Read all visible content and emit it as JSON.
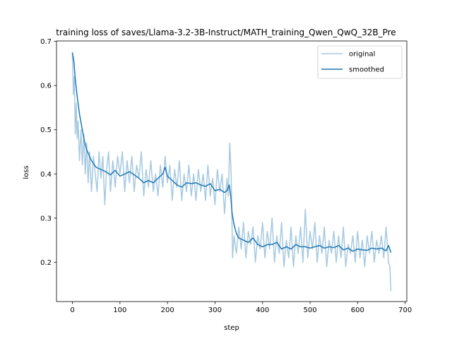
{
  "chart_data": {
    "type": "line",
    "title": "training loss of saves/Llama-3.2-3B-Instruct/MATH_training_Qwen_QwQ_32B_Pre",
    "xlabel": "step",
    "ylabel": "loss",
    "xlim": [
      -33.5,
      703.5
    ],
    "ylim": [
      0.111,
      0.701
    ],
    "xticks": [
      0,
      100,
      200,
      300,
      400,
      500,
      600,
      700
    ],
    "yticks": [
      0.2,
      0.3,
      0.4,
      0.5,
      0.6,
      0.7
    ],
    "grid": false,
    "legend_position": "top-right",
    "series": [
      {
        "name": "original",
        "color": "#1f77b4",
        "alpha": 0.4,
        "x": [
          0,
          2,
          4,
          6,
          8,
          10,
          12,
          15,
          18,
          21,
          24,
          27,
          30,
          33,
          36,
          40,
          44,
          48,
          52,
          56,
          60,
          64,
          68,
          72,
          76,
          80,
          85,
          90,
          95,
          100,
          105,
          110,
          115,
          120,
          125,
          130,
          135,
          140,
          145,
          150,
          155,
          160,
          165,
          170,
          175,
          180,
          185,
          190,
          195,
          200,
          205,
          210,
          215,
          220,
          225,
          230,
          235,
          240,
          245,
          250,
          255,
          260,
          265,
          270,
          275,
          280,
          285,
          290,
          295,
          300,
          305,
          310,
          315,
          320,
          325,
          328,
          331,
          334,
          337,
          340,
          345,
          350,
          355,
          360,
          365,
          370,
          375,
          380,
          385,
          390,
          395,
          400,
          405,
          410,
          415,
          420,
          425,
          430,
          435,
          440,
          445,
          450,
          455,
          460,
          465,
          470,
          475,
          480,
          485,
          490,
          495,
          500,
          505,
          510,
          515,
          520,
          525,
          530,
          535,
          540,
          545,
          550,
          555,
          560,
          565,
          570,
          575,
          580,
          585,
          590,
          595,
          600,
          605,
          610,
          615,
          620,
          625,
          630,
          635,
          640,
          645,
          650,
          655,
          660,
          665,
          668,
          670
        ],
        "y": [
          0.675,
          0.58,
          0.62,
          0.49,
          0.56,
          0.48,
          0.52,
          0.43,
          0.5,
          0.42,
          0.49,
          0.4,
          0.47,
          0.38,
          0.45,
          0.36,
          0.44,
          0.4,
          0.36,
          0.45,
          0.39,
          0.44,
          0.33,
          0.41,
          0.45,
          0.36,
          0.43,
          0.37,
          0.44,
          0.4,
          0.45,
          0.36,
          0.43,
          0.38,
          0.44,
          0.36,
          0.42,
          0.39,
          0.45,
          0.35,
          0.41,
          0.37,
          0.43,
          0.36,
          0.4,
          0.35,
          0.42,
          0.37,
          0.44,
          0.38,
          0.42,
          0.34,
          0.41,
          0.37,
          0.43,
          0.34,
          0.4,
          0.36,
          0.42,
          0.35,
          0.4,
          0.34,
          0.41,
          0.36,
          0.4,
          0.34,
          0.42,
          0.35,
          0.39,
          0.33,
          0.41,
          0.36,
          0.4,
          0.31,
          0.39,
          0.35,
          0.47,
          0.4,
          0.21,
          0.26,
          0.22,
          0.28,
          0.23,
          0.29,
          0.21,
          0.27,
          0.24,
          0.28,
          0.2,
          0.26,
          0.23,
          0.29,
          0.21,
          0.27,
          0.23,
          0.3,
          0.2,
          0.26,
          0.22,
          0.29,
          0.19,
          0.25,
          0.21,
          0.28,
          0.19,
          0.26,
          0.22,
          0.28,
          0.2,
          0.32,
          0.21,
          0.27,
          0.23,
          0.29,
          0.2,
          0.26,
          0.22,
          0.28,
          0.19,
          0.25,
          0.22,
          0.27,
          0.2,
          0.26,
          0.21,
          0.28,
          0.19,
          0.24,
          0.22,
          0.26,
          0.2,
          0.27,
          0.21,
          0.25,
          0.19,
          0.26,
          0.22,
          0.27,
          0.2,
          0.25,
          0.22,
          0.26,
          0.21,
          0.28,
          0.2,
          0.19,
          0.135
        ]
      },
      {
        "name": "smoothed",
        "color": "#1f77b4",
        "alpha": 1.0,
        "x": [
          0,
          3,
          6,
          10,
          15,
          20,
          25,
          30,
          40,
          50,
          60,
          70,
          80,
          90,
          100,
          110,
          120,
          130,
          140,
          150,
          160,
          170,
          180,
          190,
          195,
          200,
          210,
          220,
          230,
          240,
          250,
          260,
          270,
          280,
          290,
          300,
          310,
          320,
          325,
          330,
          333,
          336,
          340,
          345,
          350,
          360,
          370,
          380,
          390,
          400,
          410,
          420,
          430,
          440,
          450,
          460,
          470,
          480,
          490,
          500,
          510,
          520,
          530,
          540,
          550,
          560,
          570,
          580,
          590,
          600,
          610,
          620,
          630,
          640,
          650,
          660,
          665,
          670
        ],
        "y": [
          0.675,
          0.655,
          0.615,
          0.575,
          0.535,
          0.505,
          0.475,
          0.455,
          0.43,
          0.415,
          0.41,
          0.405,
          0.398,
          0.408,
          0.395,
          0.4,
          0.405,
          0.398,
          0.39,
          0.38,
          0.385,
          0.38,
          0.39,
          0.4,
          0.415,
          0.395,
          0.385,
          0.375,
          0.37,
          0.38,
          0.378,
          0.38,
          0.375,
          0.372,
          0.378,
          0.362,
          0.365,
          0.358,
          0.362,
          0.375,
          0.35,
          0.31,
          0.285,
          0.265,
          0.255,
          0.25,
          0.245,
          0.255,
          0.24,
          0.235,
          0.24,
          0.24,
          0.245,
          0.23,
          0.235,
          0.23,
          0.24,
          0.235,
          0.235,
          0.232,
          0.235,
          0.238,
          0.232,
          0.235,
          0.233,
          0.238,
          0.228,
          0.232,
          0.225,
          0.23,
          0.228,
          0.227,
          0.232,
          0.23,
          0.232,
          0.226,
          0.238,
          0.222
        ]
      }
    ]
  }
}
